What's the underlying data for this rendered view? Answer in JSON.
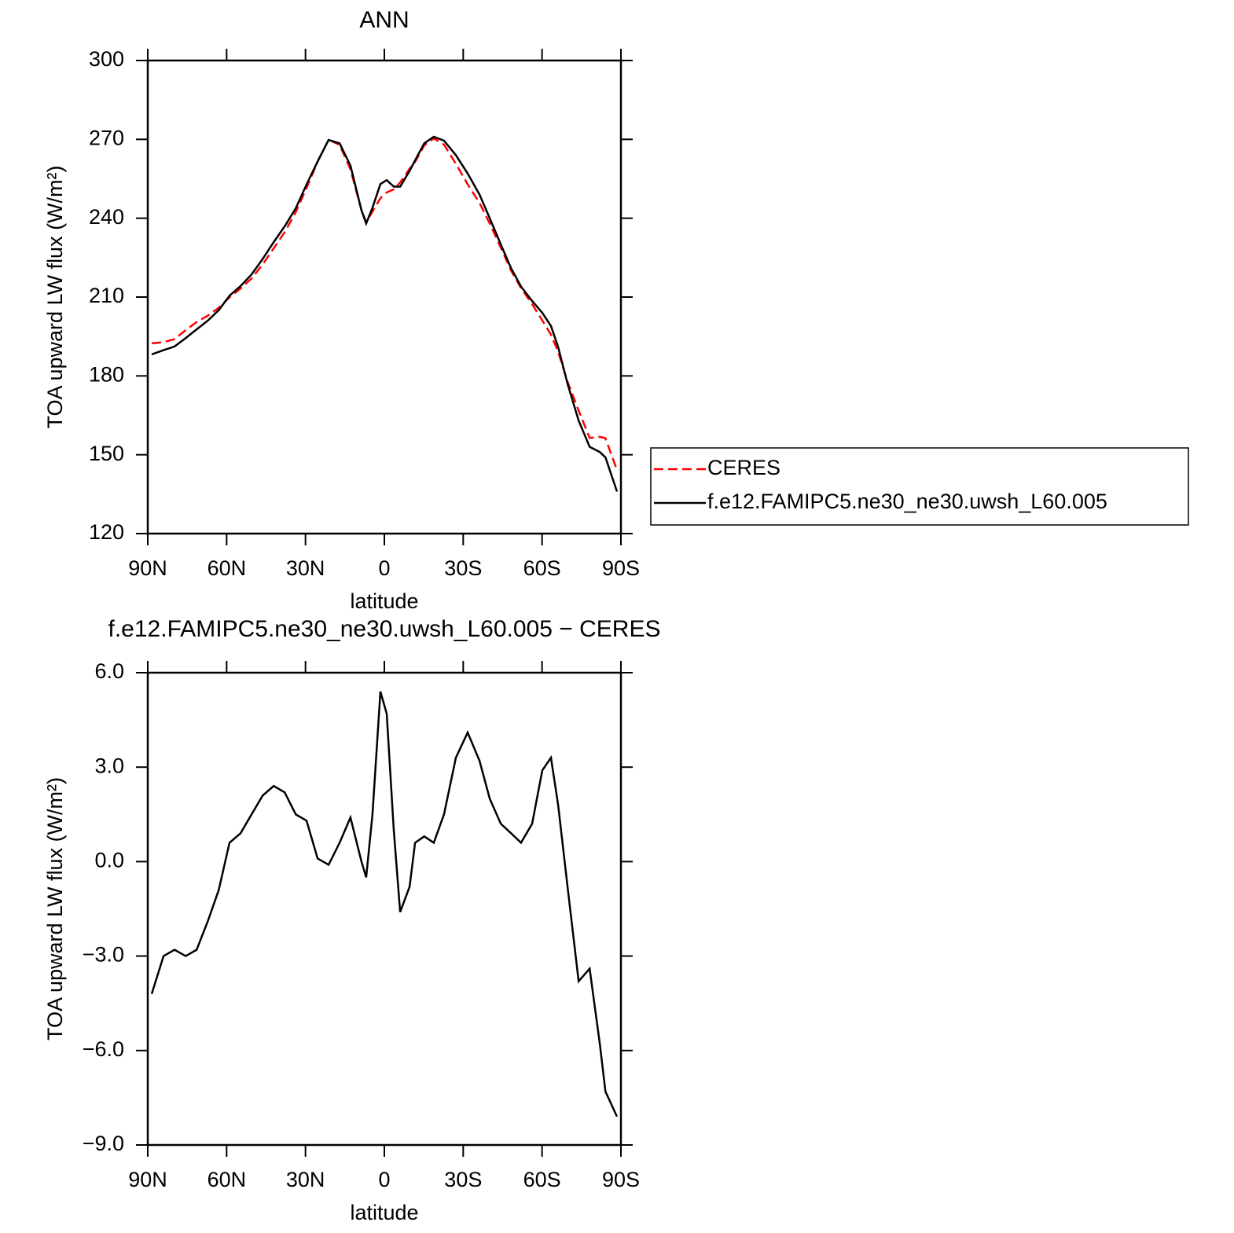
{
  "chart_data": [
    {
      "type": "line",
      "title": "ANN",
      "x": [
        88.5,
        84.0,
        79.8,
        75.6,
        71.4,
        67.2,
        63.0,
        58.9,
        54.7,
        50.5,
        46.3,
        42.1,
        37.9,
        33.7,
        29.6,
        25.4,
        21.2,
        17.0,
        12.9,
        8.7,
        6.9,
        4.5,
        1.5,
        -0.9,
        -3.6,
        -6.0,
        -9.6,
        -11.7,
        -15.2,
        -18.8,
        -22.7,
        -27.2,
        -31.7,
        -36.2,
        -40.1,
        -44.3,
        -48.2,
        -52.0,
        -56.2,
        -60.1,
        -63.4,
        -66.1,
        -69.7,
        -73.9,
        -78.1,
        -82.0,
        -84.1,
        -88.5
      ],
      "series": [
        {
          "name": "CERES",
          "color": "#ff0000",
          "dashed": true,
          "values": [
            192.4,
            192.8,
            194.0,
            197.4,
            200.5,
            202.9,
            205.9,
            209.9,
            213.3,
            217.1,
            222.4,
            228.5,
            234.7,
            242.3,
            251.5,
            261.5,
            269.9,
            267.9,
            258.6,
            243.0,
            238.5,
            242.5,
            247.6,
            249.8,
            251.0,
            253.6,
            258.8,
            261.4,
            267.7,
            270.4,
            268.0,
            260.7,
            252.9,
            245.8,
            238.0,
            228.8,
            220.1,
            213.4,
            207.3,
            201.1,
            195.7,
            189.2,
            177.8,
            166.8,
            156.4,
            156.8,
            156.3,
            144.1
          ]
        },
        {
          "name": "f.e12.FAMIPC5.ne30_ne30.uwsh_L60.005",
          "color": "#000000",
          "dashed": false,
          "values": [
            188.2,
            189.8,
            191.2,
            194.4,
            197.7,
            201.0,
            205.0,
            210.5,
            214.2,
            218.6,
            224.5,
            230.9,
            236.9,
            243.8,
            252.8,
            261.6,
            269.8,
            268.5,
            260.0,
            243.0,
            238.0,
            244.0,
            253.0,
            254.5,
            252.0,
            252.0,
            258.0,
            262.0,
            268.5,
            271.0,
            269.5,
            264.0,
            257.0,
            249.0,
            240.0,
            230.0,
            221.0,
            214.0,
            208.5,
            204.0,
            199.0,
            191.0,
            177.0,
            163.0,
            153.0,
            151.0,
            149.0,
            136.0
          ]
        }
      ],
      "x_label": "latitude",
      "y_label": "TOA upward LW flux (W/m²)",
      "xlim": [
        90,
        -90
      ],
      "xticks": [
        {
          "value": 90,
          "label": "90N"
        },
        {
          "value": 60,
          "label": "60N"
        },
        {
          "value": 30,
          "label": "30N"
        },
        0,
        {
          "value": -30,
          "label": "30S"
        },
        {
          "value": -60,
          "label": "60S"
        },
        {
          "value": -90,
          "label": "90S"
        }
      ],
      "ylim": [
        120,
        300
      ],
      "yticks": [
        120,
        150,
        180,
        210,
        240,
        270,
        300
      ],
      "legend": "right"
    },
    {
      "type": "line",
      "title": "f.e12.FAMIPC5.ne30_ne30.uwsh_L60.005 − CERES",
      "x": [
        88.5,
        84.0,
        79.8,
        75.6,
        71.4,
        67.2,
        63.0,
        58.9,
        54.7,
        50.5,
        46.3,
        42.1,
        37.9,
        33.7,
        29.6,
        25.4,
        21.2,
        17.0,
        12.9,
        8.7,
        6.9,
        4.5,
        1.5,
        -0.9,
        -3.6,
        -6.0,
        -9.6,
        -11.7,
        -15.2,
        -18.8,
        -22.7,
        -27.2,
        -31.7,
        -36.2,
        -40.1,
        -44.3,
        -48.2,
        -52.0,
        -56.2,
        -60.1,
        -63.4,
        -66.1,
        -69.7,
        -73.9,
        -78.1,
        -82.0,
        -84.1,
        -88.5
      ],
      "values": [
        -4.2,
        -3.0,
        -2.8,
        -3.0,
        -2.8,
        -1.9,
        -0.9,
        0.6,
        0.9,
        1.5,
        2.1,
        2.4,
        2.2,
        1.5,
        1.3,
        0.1,
        -0.1,
        0.6,
        1.4,
        0.0,
        -0.5,
        1.5,
        5.4,
        4.7,
        1.0,
        -1.6,
        -0.8,
        0.6,
        0.8,
        0.6,
        1.5,
        3.3,
        4.1,
        3.2,
        2.0,
        1.2,
        0.9,
        0.6,
        1.2,
        2.9,
        3.3,
        1.8,
        -0.8,
        -3.8,
        -3.4,
        -5.8,
        -7.3,
        -8.1
      ],
      "color": "#000000",
      "x_label": "latitude",
      "y_label": "TOA upward LW flux (W/m²)",
      "xlim": [
        90,
        -90
      ],
      "xticks": [
        {
          "value": 90,
          "label": "90N"
        },
        {
          "value": 60,
          "label": "60N"
        },
        {
          "value": 30,
          "label": "30N"
        },
        0,
        {
          "value": -30,
          "label": "30S"
        },
        {
          "value": -60,
          "label": "60S"
        },
        {
          "value": -90,
          "label": "90S"
        }
      ],
      "ylim": [
        -9,
        6
      ],
      "yticks": [
        {
          "value": -9,
          "label": "−9.0"
        },
        {
          "value": -6,
          "label": "−6.0"
        },
        {
          "value": -3,
          "label": "−3.0"
        },
        {
          "value": 0,
          "label": "0.0"
        },
        {
          "value": 3,
          "label": "3.0"
        },
        {
          "value": 6,
          "label": "6.0"
        }
      ]
    }
  ]
}
